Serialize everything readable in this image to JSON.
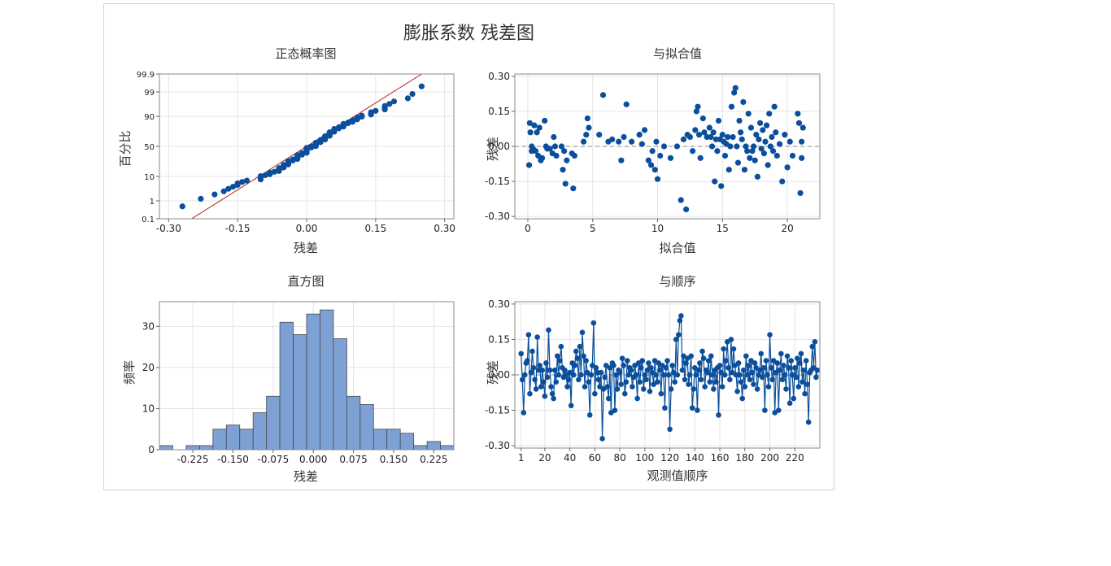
{
  "figure": {
    "title": "膨胀系数 残差图"
  },
  "chart_data": [
    {
      "id": "normal-prob",
      "type": "scatter",
      "title": "正态概率图",
      "xlabel": "残差",
      "ylabel": "百分比",
      "xlim": [
        -0.32,
        0.32
      ],
      "xticks": [
        -0.3,
        -0.15,
        0.0,
        0.15,
        0.3
      ],
      "xtick_labels": [
        "-0.30",
        "-0.15",
        "0.00",
        "0.15",
        "0.30"
      ],
      "yticks": [
        0.1,
        1,
        10,
        50,
        90,
        99,
        99.9
      ],
      "ytick_labels": [
        "0.1",
        "1",
        "10",
        "50",
        "90",
        "99",
        "99.9"
      ],
      "yscale": "probability",
      "reference_line": {
        "x": [
          -0.25,
          0.25
        ],
        "y": [
          0.1,
          99.9
        ],
        "color": "#b22222"
      },
      "grid": true,
      "point_color": "#0b4f9c"
    },
    {
      "id": "vs-fits",
      "type": "scatter",
      "title": "与拟合值",
      "xlabel": "拟合值",
      "ylabel": "残差",
      "xlim": [
        -1,
        22.5
      ],
      "ylim": [
        -0.31,
        0.31
      ],
      "xticks": [
        0,
        5,
        10,
        15,
        20
      ],
      "xtick_labels": [
        "0",
        "5",
        "10",
        "15",
        "20"
      ],
      "yticks": [
        -0.3,
        -0.15,
        0.0,
        0.15,
        0.3
      ],
      "ytick_labels": [
        "-0.30",
        "-0.15",
        "0.00",
        "0.15",
        "0.30"
      ],
      "reference_line": {
        "y": 0,
        "style": "dashed"
      },
      "grid": true,
      "point_color": "#0b4f9c",
      "points": [
        [
          0.1,
          -0.08
        ],
        [
          0.15,
          0.1
        ],
        [
          0.2,
          0.06
        ],
        [
          0.3,
          0.0
        ],
        [
          0.3,
          -0.02
        ],
        [
          0.4,
          -0.01
        ],
        [
          0.5,
          0.09
        ],
        [
          0.6,
          -0.02
        ],
        [
          0.7,
          0.06
        ],
        [
          0.8,
          -0.04
        ],
        [
          0.9,
          0.08
        ],
        [
          1.0,
          -0.06
        ],
        [
          1.1,
          -0.05
        ],
        [
          1.3,
          0.11
        ],
        [
          1.4,
          0.0
        ],
        [
          1.5,
          -0.01
        ],
        [
          1.7,
          -0.01
        ],
        [
          1.9,
          -0.03
        ],
        [
          2.0,
          0.04
        ],
        [
          2.1,
          0.0
        ],
        [
          2.2,
          -0.04
        ],
        [
          2.6,
          0.0
        ],
        [
          2.7,
          -0.1
        ],
        [
          2.8,
          -0.02
        ],
        [
          2.9,
          -0.16
        ],
        [
          3.0,
          -0.06
        ],
        [
          3.4,
          -0.03
        ],
        [
          3.5,
          -0.18
        ],
        [
          3.6,
          -0.04
        ],
        [
          4.3,
          0.02
        ],
        [
          4.5,
          0.05
        ],
        [
          4.6,
          0.12
        ],
        [
          4.7,
          0.08
        ],
        [
          5.5,
          0.05
        ],
        [
          5.8,
          0.22
        ],
        [
          6.2,
          0.02
        ],
        [
          6.5,
          0.03
        ],
        [
          7.0,
          0.02
        ],
        [
          7.2,
          -0.06
        ],
        [
          7.4,
          0.04
        ],
        [
          7.6,
          0.18
        ],
        [
          8.0,
          0.02
        ],
        [
          8.6,
          0.05
        ],
        [
          8.8,
          0.01
        ],
        [
          9.0,
          0.07
        ],
        [
          9.3,
          -0.06
        ],
        [
          9.5,
          -0.08
        ],
        [
          9.6,
          -0.02
        ],
        [
          9.8,
          -0.1
        ],
        [
          9.9,
          0.02
        ],
        [
          10.0,
          -0.14
        ],
        [
          10.2,
          -0.04
        ],
        [
          10.5,
          0.0
        ],
        [
          11.0,
          -0.05
        ],
        [
          11.5,
          0.0
        ],
        [
          11.8,
          -0.23
        ],
        [
          12.0,
          0.03
        ],
        [
          12.2,
          -0.27
        ],
        [
          12.3,
          0.05
        ],
        [
          12.5,
          0.04
        ],
        [
          12.7,
          -0.02
        ],
        [
          12.9,
          0.07
        ],
        [
          13.0,
          0.15
        ],
        [
          13.1,
          0.17
        ],
        [
          13.2,
          0.05
        ],
        [
          13.3,
          -0.05
        ],
        [
          13.5,
          0.12
        ],
        [
          13.6,
          0.06
        ],
        [
          13.8,
          0.04
        ],
        [
          14.0,
          0.08
        ],
        [
          14.1,
          0.04
        ],
        [
          14.2,
          0.0
        ],
        [
          14.3,
          0.06
        ],
        [
          14.4,
          -0.15
        ],
        [
          14.5,
          0.03
        ],
        [
          14.6,
          -0.02
        ],
        [
          14.7,
          0.11
        ],
        [
          14.8,
          0.03
        ],
        [
          14.9,
          -0.17
        ],
        [
          15.0,
          0.05
        ],
        [
          15.1,
          0.02
        ],
        [
          15.2,
          -0.04
        ],
        [
          15.3,
          0.01
        ],
        [
          15.4,
          0.04
        ],
        [
          15.5,
          -0.1
        ],
        [
          15.6,
          0.0
        ],
        [
          15.7,
          0.17
        ],
        [
          15.8,
          0.04
        ],
        [
          15.9,
          0.23
        ],
        [
          16.0,
          0.25
        ],
        [
          16.1,
          0.0
        ],
        [
          16.2,
          -0.07
        ],
        [
          16.3,
          0.11
        ],
        [
          16.4,
          0.06
        ],
        [
          16.5,
          0.03
        ],
        [
          16.6,
          0.19
        ],
        [
          16.7,
          -0.1
        ],
        [
          16.8,
          0.0
        ],
        [
          16.9,
          -0.02
        ],
        [
          17.0,
          0.14
        ],
        [
          17.1,
          -0.05
        ],
        [
          17.2,
          0.08
        ],
        [
          17.3,
          -0.02
        ],
        [
          17.4,
          0.0
        ],
        [
          17.5,
          -0.06
        ],
        [
          17.6,
          0.05
        ],
        [
          17.7,
          -0.13
        ],
        [
          17.8,
          0.03
        ],
        [
          17.9,
          0.1
        ],
        [
          18.0,
          -0.01
        ],
        [
          18.1,
          0.07
        ],
        [
          18.2,
          -0.03
        ],
        [
          18.3,
          0.02
        ],
        [
          18.4,
          0.09
        ],
        [
          18.5,
          -0.08
        ],
        [
          18.6,
          0.14
        ],
        [
          18.7,
          0.0
        ],
        [
          18.8,
          0.04
        ],
        [
          18.9,
          -0.02
        ],
        [
          19.0,
          0.17
        ],
        [
          19.1,
          0.06
        ],
        [
          19.2,
          -0.04
        ],
        [
          19.4,
          0.01
        ],
        [
          19.6,
          -0.15
        ],
        [
          19.8,
          0.05
        ],
        [
          20.0,
          -0.09
        ],
        [
          20.2,
          0.02
        ],
        [
          20.4,
          -0.04
        ],
        [
          20.8,
          0.14
        ],
        [
          20.9,
          0.1
        ],
        [
          21.0,
          -0.2
        ],
        [
          21.1,
          0.02
        ],
        [
          21.1,
          -0.05
        ],
        [
          21.2,
          0.08
        ]
      ]
    },
    {
      "id": "histogram",
      "type": "bar",
      "title": "直方图",
      "xlabel": "残差",
      "ylabel": "频率",
      "xlim": [
        -0.2875,
        0.2625
      ],
      "ylim": [
        0,
        36
      ],
      "bin_width": 0.025,
      "bin_start": -0.2875,
      "values": [
        1,
        0,
        1,
        1,
        5,
        6,
        5,
        9,
        13,
        31,
        28,
        33,
        34,
        27,
        13,
        11,
        5,
        5,
        4,
        1,
        2,
        1
      ],
      "xticks": [
        -0.225,
        -0.15,
        -0.075,
        0.0,
        0.075,
        0.15,
        0.225
      ],
      "xtick_labels": [
        "-0.225",
        "-0.150",
        "-0.075",
        "0.000",
        "0.075",
        "0.150",
        "0.225"
      ],
      "yticks": [
        0,
        10,
        20,
        30
      ],
      "ytick_labels": [
        "0",
        "10",
        "20",
        "30"
      ],
      "grid": true,
      "bar_color": "#7da1d4",
      "bar_edge_color": "#4a4a4a"
    },
    {
      "id": "vs-order",
      "type": "line",
      "title": "与顺序",
      "xlabel": "观测值顺序",
      "ylabel": "残差",
      "xlim": [
        -4,
        240
      ],
      "ylim": [
        -0.31,
        0.31
      ],
      "xticks": [
        1,
        20,
        40,
        60,
        80,
        100,
        120,
        140,
        160,
        180,
        200,
        220
      ],
      "xtick_labels": [
        "1",
        "20",
        "40",
        "60",
        "80",
        "100",
        "120",
        "140",
        "160",
        "180",
        "200",
        "220"
      ],
      "yticks": [
        -0.3,
        -0.15,
        0.0,
        0.15,
        0.3
      ],
      "ytick_labels": [
        "-0.30",
        "-0.15",
        "0.00",
        "0.15",
        "0.30"
      ],
      "reference_line": {
        "y": 0,
        "style": "dashed"
      },
      "grid": true,
      "line_color": "#0b4f9c",
      "values": [
        0.09,
        -0.02,
        -0.16,
        0.0,
        0.05,
        0.06,
        0.17,
        -0.08,
        0.01,
        0.1,
        0.03,
        -0.02,
        -0.06,
        0.16,
        0.02,
        0.04,
        -0.05,
        0.02,
        -0.03,
        -0.09,
        0.05,
        -0.01,
        0.19,
        0.02,
        -0.05,
        -0.08,
        -0.1,
        0.02,
        -0.03,
        0.08,
        0.0,
        0.06,
        0.12,
        0.03,
        -0.01,
        0.02,
        0.0,
        -0.05,
        -0.02,
        0.01,
        -0.13,
        0.05,
        0.0,
        0.04,
        0.1,
        0.07,
        -0.02,
        0.12,
        0.0,
        0.18,
        0.08,
        -0.05,
        0.06,
        0.01,
        -0.03,
        -0.17,
        0.0,
        0.04,
        0.22,
        -0.08,
        0.03,
        0.01,
        -0.02,
        -0.05,
        0.01,
        -0.27,
        -0.06,
        -0.01,
        0.04,
        -0.05,
        -0.1,
        0.03,
        -0.16,
        0.05,
        0.04,
        -0.15,
        0.0,
        -0.06,
        0.02,
        0.01,
        -0.04,
        0.07,
        0.04,
        -0.08,
        -0.03,
        0.06,
        0.0,
        0.03,
        0.02,
        -0.05,
        -0.01,
        0.04,
        0.0,
        -0.1,
        0.05,
        -0.03,
        0.03,
        0.06,
        -0.06,
        0.0,
        -0.02,
        0.02,
        0.05,
        -0.07,
        0.03,
        0.01,
        -0.04,
        0.06,
        0.0,
        -0.03,
        0.05,
        0.02,
        -0.08,
        0.04,
        0.0,
        -0.14,
        0.03,
        0.06,
        0.0,
        -0.23,
        -0.06,
        0.04,
        0.01,
        -0.03,
        0.15,
        0.0,
        0.17,
        0.23,
        0.25,
        0.02,
        0.08,
        -0.02,
        0.05,
        0.07,
        -0.04,
        0.0,
        0.08,
        -0.14,
        -0.06,
        0.03,
        0.0,
        -0.15,
        0.02,
        0.05,
        -0.02,
        0.1,
        0.07,
        -0.05,
        0.02,
        0.01,
        0.06,
        -0.03,
        0.08,
        0.0,
        -0.06,
        0.02,
        -0.03,
        0.03,
        -0.17,
        0.04,
        0.01,
        -0.05,
        0.11,
        0.0,
        0.06,
        0.14,
        0.03,
        -0.02,
        0.15,
        0.01,
        0.11,
        0.04,
        0.0,
        -0.07,
        0.05,
        0.0,
        -0.03,
        -0.1,
        0.02,
        -0.05,
        0.08,
        0.0,
        0.04,
        -0.02,
        0.06,
        0.01,
        -0.04,
        0.05,
        0.03,
        -0.06,
        0.0,
        0.02,
        0.09,
        -0.01,
        0.03,
        -0.15,
        0.06,
        0.0,
        -0.05,
        0.17,
        0.03,
        -0.02,
        0.06,
        -0.16,
        0.01,
        0.05,
        -0.15,
        0.02,
        0.09,
        -0.02,
        0.04,
        0.0,
        -0.06,
        0.08,
        0.03,
        -0.12,
        0.06,
        0.0,
        -0.1,
        0.03,
        -0.01,
        0.07,
        -0.05,
        0.05,
        0.09,
        -0.03,
        0.02,
        -0.08,
        0.06,
        -0.04,
        -0.2,
        0.01,
        0.02,
        0.12,
        0.03,
        0.14,
        -0.01,
        0.02
      ]
    }
  ]
}
